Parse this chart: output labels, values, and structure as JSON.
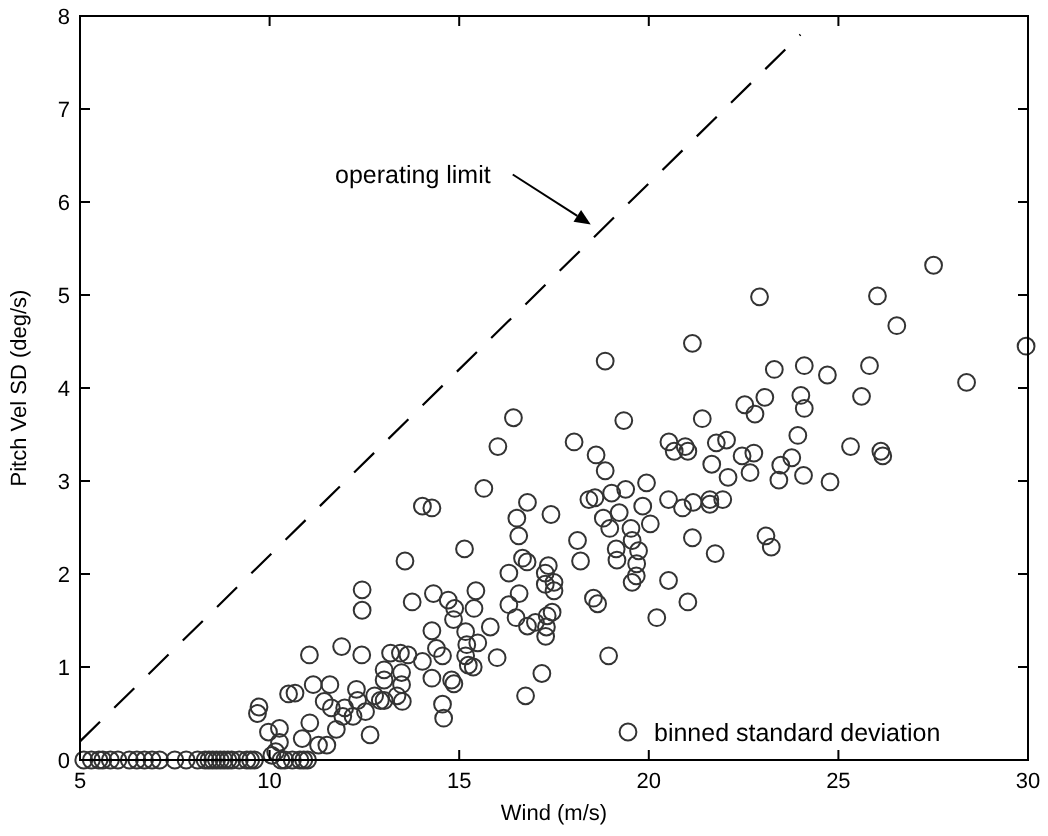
{
  "chart_data": {
    "type": "scatter",
    "xlabel": "Wind (m/s)",
    "ylabel": "Pitch Vel SD (deg/s)",
    "xlim": [
      5,
      30
    ],
    "ylim": [
      0,
      8
    ],
    "xticks": [
      5,
      10,
      15,
      20,
      25,
      30
    ],
    "yticks": [
      0,
      1,
      2,
      3,
      4,
      5,
      6,
      7,
      8
    ],
    "grid": false,
    "legend": "bottom right",
    "annotations": [
      "operating limit"
    ],
    "series": [
      {
        "name": "binned standard deviation",
        "marker": "circle",
        "color": "#333333",
        "x": [
          5.1,
          5.3,
          5.5,
          5.6,
          5.8,
          6.0,
          6.3,
          6.5,
          6.7,
          6.9,
          7.1,
          7.5,
          7.8,
          8.1,
          8.3,
          8.4,
          8.5,
          8.6,
          8.7,
          8.8,
          8.9,
          9.0,
          9.2,
          9.4,
          9.5,
          9.6,
          10.3,
          10.4,
          10.6,
          10.8,
          10.9,
          11.0,
          9.68,
          9.72,
          9.97,
          10.26,
          10.26,
          10.16,
          10.06,
          10.5,
          10.67,
          10.86,
          11.05,
          11.06,
          11.15,
          11.29,
          11.44,
          11.51,
          11.59,
          11.63,
          11.76,
          11.9,
          11.93,
          11.98,
          12.2,
          12.29,
          12.32,
          12.43,
          12.44,
          12.44,
          12.53,
          12.65,
          12.77,
          12.92,
          13.02,
          13.02,
          13.02,
          13.19,
          13.36,
          13.45,
          13.48,
          13.48,
          13.5,
          13.57,
          13.65,
          13.76,
          14.03,
          14.03,
          14.28,
          14.28,
          14.28,
          14.32,
          14.4,
          14.56,
          14.56,
          14.59,
          14.71,
          14.8,
          14.86,
          14.88,
          14.85,
          15.14,
          15.17,
          15.17,
          15.2,
          15.24,
          15.37,
          15.39,
          15.44,
          15.49,
          15.65,
          15.82,
          16.0,
          16.02,
          16.31,
          16.31,
          16.43,
          16.5,
          16.52,
          16.57,
          16.58,
          16.67,
          16.75,
          16.79,
          16.8,
          16.8,
          17.01,
          17.18,
          17.27,
          17.27,
          17.28,
          17.3,
          17.32,
          17.35,
          17.42,
          17.45,
          17.5,
          17.5,
          18.03,
          18.12,
          18.2,
          18.42,
          18.54,
          18.58,
          18.61,
          18.65,
          18.8,
          18.85,
          18.85,
          18.94,
          18.97,
          19.02,
          19.14,
          19.16,
          19.22,
          19.34,
          19.39,
          19.53,
          19.56,
          19.56,
          19.67,
          19.68,
          19.73,
          19.84,
          19.94,
          20.04,
          20.21,
          20.52,
          20.53,
          20.52,
          20.67,
          20.89,
          20.96,
          21.03,
          21.03,
          21.15,
          21.15,
          21.17,
          21.41,
          21.61,
          21.61,
          21.66,
          21.75,
          21.78,
          21.95,
          22.05,
          22.09,
          22.46,
          22.53,
          22.67,
          22.77,
          22.8,
          22.92,
          23.06,
          23.09,
          23.23,
          23.31,
          23.43,
          23.48,
          23.77,
          23.93,
          24.01,
          24.08,
          24.1,
          24.1,
          24.71,
          24.78,
          25.32,
          25.61,
          25.82,
          26.03,
          26.12,
          26.17,
          26.54,
          27.51,
          28.38,
          29.95
        ],
        "values": [
          0,
          0,
          0,
          0,
          0,
          0,
          0,
          0,
          0,
          0,
          0,
          0,
          0,
          0,
          0,
          0,
          0,
          0,
          0,
          0,
          0,
          0,
          0,
          0,
          0,
          0,
          0,
          0,
          0,
          0,
          0,
          0,
          0.5,
          0.57,
          0.3,
          0.34,
          0.19,
          0.09,
          0.05,
          0.71,
          0.72,
          0.23,
          1.13,
          0.4,
          0.81,
          0.16,
          0.63,
          0.16,
          0.81,
          0.56,
          0.33,
          1.22,
          0.47,
          0.56,
          0.47,
          0.76,
          0.64,
          1.13,
          1.83,
          1.61,
          0.52,
          0.27,
          0.69,
          0.64,
          0.97,
          0.86,
          0.64,
          1.15,
          0.69,
          1.15,
          0.94,
          0.81,
          0.63,
          2.14,
          1.13,
          1.7,
          2.73,
          1.06,
          2.71,
          1.39,
          0.88,
          1.79,
          1.2,
          1.12,
          0.6,
          0.45,
          1.72,
          0.86,
          0.82,
          1.63,
          1.51,
          2.27,
          1.38,
          1.12,
          1.24,
          1.02,
          1.0,
          1.63,
          1.82,
          1.26,
          2.92,
          1.43,
          1.1,
          3.37,
          2.01,
          1.67,
          3.68,
          1.53,
          2.6,
          2.41,
          1.79,
          2.17,
          0.69,
          2.13,
          2.77,
          1.44,
          1.48,
          0.93,
          2.01,
          1.89,
          1.33,
          1.43,
          1.55,
          2.09,
          2.64,
          1.59,
          1.91,
          1.82,
          3.42,
          2.36,
          2.14,
          2.8,
          1.74,
          2.82,
          3.28,
          1.68,
          2.6,
          4.29,
          3.11,
          1.12,
          2.49,
          2.87,
          2.27,
          2.15,
          2.66,
          3.65,
          2.91,
          2.49,
          2.36,
          1.91,
          1.98,
          2.11,
          2.25,
          2.73,
          2.98,
          2.54,
          1.53,
          2.8,
          3.42,
          1.93,
          3.32,
          2.71,
          3.37,
          3.32,
          1.7,
          2.39,
          4.48,
          2.77,
          3.67,
          2.8,
          2.75,
          3.18,
          2.22,
          3.41,
          2.8,
          3.44,
          3.04,
          3.27,
          3.82,
          3.09,
          3.3,
          3.72,
          4.98,
          3.9,
          2.41,
          2.29,
          4.2,
          3.01,
          3.17,
          3.25,
          3.49,
          3.92,
          3.06,
          4.24,
          3.78,
          4.14,
          2.99,
          3.37,
          3.91,
          4.24,
          4.99,
          3.32,
          3.27,
          4.67,
          5.32,
          4.06,
          4.45
        ]
      },
      {
        "type": "line",
        "color": "#000000",
        "line_style": "dashed",
        "x": [
          5,
          24
        ],
        "values": [
          0.2,
          7.8
        ]
      }
    ]
  }
}
